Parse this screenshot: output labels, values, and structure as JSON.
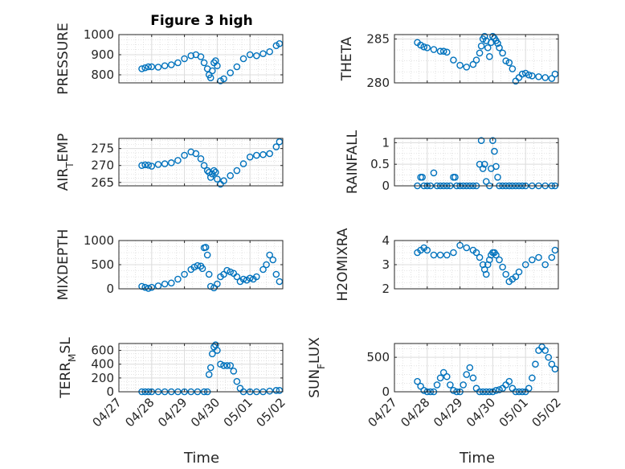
{
  "figure": {
    "title": "Figure 3 high",
    "xlabel": "Time"
  },
  "x_ticks": [
    "04/27",
    "04/28",
    "04/29",
    "04/30",
    "05/01",
    "05/02"
  ],
  "marker_color": "#0072BD",
  "chart_data": [
    {
      "type": "scatter",
      "id": "pressure",
      "title": "Figure 3 high",
      "ylabel": "PRESSURE",
      "xlim": [
        "04/27",
        "05/02"
      ],
      "ylim": [
        760,
        1000
      ],
      "yticks": [
        800,
        900,
        1000
      ],
      "ytick_labels": [
        "800",
        "900",
        "1000"
      ],
      "grid": true,
      "x": [
        27.7,
        27.8,
        27.9,
        28.0,
        28.2,
        28.4,
        28.6,
        28.8,
        29.0,
        29.2,
        29.35,
        29.5,
        29.6,
        29.7,
        29.75,
        29.8,
        29.85,
        29.9,
        29.95,
        30.0,
        30.1,
        30.2,
        30.4,
        30.6,
        30.8,
        31.0,
        31.2,
        31.4,
        31.6,
        31.8,
        31.9
      ],
      "y": [
        830,
        835,
        840,
        840,
        838,
        845,
        850,
        860,
        880,
        895,
        900,
        890,
        860,
        830,
        800,
        785,
        820,
        860,
        870,
        845,
        770,
        780,
        810,
        840,
        880,
        900,
        895,
        905,
        915,
        945,
        955
      ]
    },
    {
      "type": "scatter",
      "id": "theta",
      "ylabel": "THETA",
      "xlim": [
        "04/27",
        "05/02"
      ],
      "ylim": [
        280,
        285.5
      ],
      "yticks": [
        280,
        285
      ],
      "ytick_labels": [
        "280",
        "285"
      ],
      "grid": true,
      "x": [
        27.7,
        27.8,
        27.9,
        28.0,
        28.2,
        28.4,
        28.5,
        28.6,
        28.8,
        29.0,
        29.2,
        29.4,
        29.5,
        29.6,
        29.65,
        29.7,
        29.75,
        29.8,
        29.85,
        29.9,
        29.95,
        30.0,
        30.05,
        30.1,
        30.15,
        30.2,
        30.3,
        30.4,
        30.5,
        30.6,
        30.7,
        30.8,
        30.9,
        31.0,
        31.1,
        31.2,
        31.4,
        31.6,
        31.8,
        31.9
      ],
      "y": [
        284.6,
        284.3,
        284.1,
        284.0,
        283.8,
        283.6,
        283.6,
        283.5,
        282.6,
        282.0,
        281.8,
        282.1,
        282.6,
        283.4,
        284.2,
        285.0,
        285.3,
        284.8,
        284.0,
        283.0,
        284.6,
        285.3,
        285.1,
        284.8,
        284.5,
        284.0,
        283.4,
        282.5,
        282.3,
        281.6,
        280.2,
        280.6,
        281.0,
        281.1,
        280.9,
        280.8,
        280.7,
        280.6,
        280.5,
        281.0
      ]
    },
    {
      "type": "scatter",
      "id": "air_temp",
      "ylabel": "AIR_TEMP",
      "xlim": [
        "04/27",
        "05/02"
      ],
      "ylim": [
        264,
        278
      ],
      "yticks": [
        265,
        270,
        275
      ],
      "ytick_labels": [
        "265",
        "270",
        "275"
      ],
      "grid": true,
      "x": [
        27.7,
        27.8,
        27.9,
        28.0,
        28.2,
        28.4,
        28.6,
        28.8,
        29.0,
        29.2,
        29.35,
        29.5,
        29.6,
        29.7,
        29.75,
        29.8,
        29.85,
        29.9,
        29.95,
        30.0,
        30.1,
        30.2,
        30.4,
        30.6,
        30.8,
        31.0,
        31.2,
        31.4,
        31.6,
        31.8,
        31.9
      ],
      "y": [
        270,
        270.2,
        270.1,
        269.8,
        270.3,
        270.5,
        270.8,
        271.5,
        273,
        274,
        273.5,
        272,
        270,
        268.5,
        268,
        266.5,
        267.5,
        268.5,
        268,
        266,
        264.5,
        265.5,
        267,
        268.5,
        270.5,
        272.5,
        273,
        273.2,
        273.5,
        275.5,
        277
      ]
    },
    {
      "type": "scatter",
      "id": "rainfall",
      "ylabel": "RAINFALL",
      "xlim": [
        "04/27",
        "05/02"
      ],
      "ylim": [
        0,
        1.1
      ],
      "yticks": [
        0,
        0.5,
        1
      ],
      "ytick_labels": [
        "0",
        "0.5",
        "1"
      ],
      "grid": true,
      "x": [
        27.7,
        27.8,
        27.85,
        27.9,
        28.0,
        28.1,
        28.2,
        28.3,
        28.4,
        28.5,
        28.6,
        28.7,
        28.8,
        28.85,
        28.9,
        29.0,
        29.1,
        29.2,
        29.3,
        29.4,
        29.5,
        29.6,
        29.65,
        29.7,
        29.75,
        29.8,
        29.9,
        29.95,
        30.0,
        30.05,
        30.1,
        30.15,
        30.2,
        30.3,
        30.4,
        30.5,
        30.6,
        30.7,
        30.8,
        30.9,
        31.0,
        31.2,
        31.4,
        31.6,
        31.8,
        31.9
      ],
      "y": [
        0,
        0.2,
        0.2,
        0,
        0,
        0,
        0.3,
        0,
        0,
        0,
        0,
        0,
        0.2,
        0.2,
        0,
        0,
        0,
        0,
        0,
        0,
        0,
        0.5,
        1.05,
        0.4,
        0.5,
        0.1,
        0,
        0.4,
        1.05,
        0.8,
        0.45,
        0.2,
        0,
        0,
        0,
        0,
        0,
        0,
        0,
        0,
        0,
        0,
        0,
        0,
        0,
        0
      ]
    },
    {
      "type": "scatter",
      "id": "mixdepth",
      "ylabel": "MIXDEPTH",
      "xlim": [
        "04/27",
        "05/02"
      ],
      "ylim": [
        0,
        1000
      ],
      "yticks": [
        0,
        500,
        1000
      ],
      "ytick_labels": [
        "0",
        "500",
        "1000"
      ],
      "grid": true,
      "x": [
        27.7,
        27.8,
        27.9,
        28.0,
        28.2,
        28.4,
        28.6,
        28.8,
        29.0,
        29.2,
        29.3,
        29.4,
        29.5,
        29.55,
        29.6,
        29.65,
        29.7,
        29.75,
        29.8,
        29.9,
        30.0,
        30.1,
        30.2,
        30.3,
        30.4,
        30.5,
        30.6,
        30.7,
        30.8,
        30.9,
        31.0,
        31.1,
        31.2,
        31.4,
        31.5,
        31.6,
        31.7,
        31.8,
        31.9
      ],
      "y": [
        50,
        30,
        10,
        30,
        60,
        100,
        120,
        200,
        300,
        400,
        450,
        480,
        470,
        420,
        850,
        860,
        700,
        300,
        50,
        20,
        100,
        250,
        300,
        380,
        350,
        320,
        250,
        150,
        200,
        180,
        220,
        200,
        250,
        400,
        500,
        700,
        600,
        300,
        150
      ]
    },
    {
      "type": "scatter",
      "id": "h2omixra",
      "ylabel": "H2OMIXRA",
      "xlim": [
        "04/27",
        "05/02"
      ],
      "ylim": [
        2,
        4
      ],
      "yticks": [
        2,
        3,
        4
      ],
      "ytick_labels": [
        "2",
        "3",
        "4"
      ],
      "grid": true,
      "x": [
        27.7,
        27.8,
        27.9,
        28.0,
        28.2,
        28.4,
        28.6,
        28.8,
        29.0,
        29.2,
        29.4,
        29.5,
        29.6,
        29.7,
        29.75,
        29.8,
        29.85,
        29.9,
        29.95,
        30.0,
        30.05,
        30.1,
        30.2,
        30.3,
        30.4,
        30.5,
        30.6,
        30.7,
        30.8,
        31.0,
        31.2,
        31.4,
        31.6,
        31.8,
        31.9
      ],
      "y": [
        3.5,
        3.6,
        3.7,
        3.6,
        3.4,
        3.4,
        3.4,
        3.5,
        3.8,
        3.7,
        3.6,
        3.5,
        3.3,
        3.0,
        2.8,
        2.6,
        3.0,
        3.2,
        3.4,
        3.5,
        3.5,
        3.4,
        3.2,
        2.9,
        2.6,
        2.3,
        2.4,
        2.5,
        2.7,
        3.0,
        3.2,
        3.3,
        3.0,
        3.3,
        3.6
      ]
    },
    {
      "type": "scatter",
      "id": "terr_msl",
      "ylabel": "TERR_MSL",
      "xlim": [
        "04/27",
        "05/02"
      ],
      "ylim": [
        0,
        700
      ],
      "yticks": [
        0,
        200,
        400,
        600
      ],
      "ytick_labels": [
        "0",
        "200",
        "400",
        "600"
      ],
      "grid": true,
      "x": [
        27.7,
        27.8,
        27.9,
        28.0,
        28.2,
        28.4,
        28.6,
        28.8,
        29.0,
        29.2,
        29.4,
        29.6,
        29.7,
        29.75,
        29.8,
        29.85,
        29.9,
        29.95,
        30.0,
        30.1,
        30.2,
        30.3,
        30.4,
        30.5,
        30.6,
        30.7,
        30.8,
        31.0,
        31.2,
        31.4,
        31.6,
        31.8,
        31.9
      ],
      "y": [
        0,
        0,
        0,
        0,
        0,
        0,
        0,
        0,
        0,
        0,
        0,
        0,
        0,
        250,
        350,
        550,
        650,
        680,
        600,
        400,
        380,
        380,
        380,
        300,
        150,
        50,
        0,
        0,
        0,
        0,
        10,
        20,
        20
      ]
    },
    {
      "type": "scatter",
      "id": "sun_flux",
      "ylabel": "SUN_FLUX",
      "xlim": [
        "04/27",
        "05/02"
      ],
      "ylim": [
        0,
        700
      ],
      "yticks": [
        0,
        500
      ],
      "ytick_labels": [
        "0",
        "500"
      ],
      "grid": true,
      "x": [
        27.7,
        27.8,
        27.9,
        28.0,
        28.1,
        28.2,
        28.3,
        28.4,
        28.5,
        28.6,
        28.7,
        28.8,
        28.9,
        29.0,
        29.1,
        29.2,
        29.3,
        29.4,
        29.5,
        29.6,
        29.7,
        29.8,
        29.9,
        30.0,
        30.1,
        30.2,
        30.3,
        30.4,
        30.5,
        30.6,
        30.7,
        30.8,
        30.9,
        31.0,
        31.1,
        31.2,
        31.3,
        31.4,
        31.5,
        31.6,
        31.7,
        31.8,
        31.9
      ],
      "y": [
        150,
        80,
        20,
        0,
        0,
        0,
        100,
        200,
        280,
        220,
        100,
        20,
        0,
        0,
        100,
        250,
        350,
        200,
        50,
        0,
        0,
        0,
        0,
        0,
        20,
        30,
        50,
        100,
        150,
        50,
        0,
        0,
        0,
        0,
        50,
        200,
        400,
        600,
        650,
        600,
        500,
        400,
        330
      ]
    }
  ]
}
